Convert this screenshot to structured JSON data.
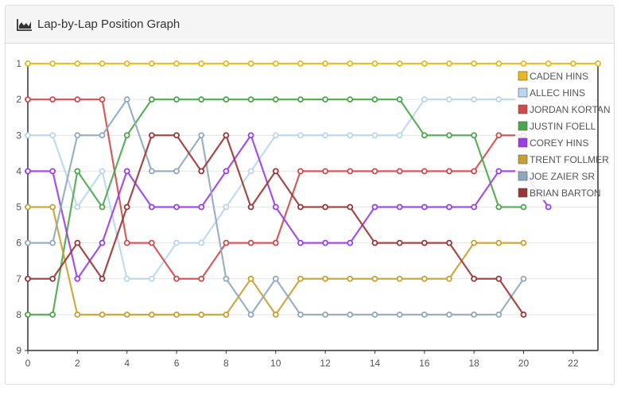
{
  "panel": {
    "title": "Lap-by-Lap Position Graph",
    "icon": "area-chart-icon"
  },
  "chart_data": {
    "type": "line",
    "title": "Lap-by-Lap Position Graph",
    "xlabel": "",
    "ylabel": "",
    "xlim": [
      0,
      23
    ],
    "ylim": [
      1,
      9
    ],
    "y_inverted": true,
    "x_ticks": [
      0,
      2,
      4,
      6,
      8,
      10,
      12,
      14,
      16,
      18,
      20,
      22
    ],
    "y_ticks": [
      1,
      2,
      3,
      4,
      5,
      6,
      7,
      8,
      9
    ],
    "grid": true,
    "legend_position": "top-right",
    "series": [
      {
        "name": "CADEN HINS",
        "color": "#e8b820",
        "values": [
          1,
          1,
          1,
          1,
          1,
          1,
          1,
          1,
          1,
          1,
          1,
          1,
          1,
          1,
          1,
          1,
          1,
          1,
          1,
          1,
          1,
          1,
          1,
          1
        ]
      },
      {
        "name": "ALLEC HINS",
        "color": "#b9d6ee",
        "values": [
          3,
          3,
          5,
          4,
          7,
          7,
          6,
          6,
          5,
          4,
          3,
          3,
          3,
          3,
          3,
          3,
          2,
          2,
          2,
          2,
          2,
          null,
          null,
          null
        ]
      },
      {
        "name": "JORDAN KORTAN",
        "color": "#d04a4a",
        "values": [
          2,
          2,
          2,
          2,
          6,
          6,
          7,
          7,
          6,
          6,
          6,
          4,
          4,
          4,
          4,
          4,
          4,
          4,
          4,
          3,
          3,
          null,
          null,
          null
        ]
      },
      {
        "name": "JUSTIN FOELL",
        "color": "#4aa84a",
        "values": [
          8,
          8,
          4,
          5,
          3,
          2,
          2,
          2,
          2,
          2,
          2,
          2,
          2,
          2,
          2,
          2,
          3,
          3,
          3,
          5,
          5,
          null,
          null,
          null
        ]
      },
      {
        "name": "COREY HINS",
        "color": "#9a3ee8",
        "values": [
          4,
          4,
          7,
          6,
          4,
          5,
          5,
          5,
          4,
          3,
          5,
          6,
          6,
          6,
          5,
          5,
          5,
          5,
          5,
          4,
          4,
          5,
          null,
          null
        ]
      },
      {
        "name": "TRENT FOLLMER",
        "color": "#c9a030",
        "values": [
          5,
          5,
          8,
          8,
          8,
          8,
          8,
          8,
          8,
          7,
          8,
          7,
          7,
          7,
          7,
          7,
          7,
          7,
          6,
          6,
          6,
          null,
          null,
          null
        ]
      },
      {
        "name": "JOE ZAIER SR",
        "color": "#8fa8be",
        "values": [
          6,
          6,
          3,
          3,
          2,
          4,
          4,
          3,
          7,
          8,
          7,
          8,
          8,
          8,
          8,
          8,
          8,
          8,
          8,
          8,
          7,
          null,
          null,
          null
        ]
      },
      {
        "name": "BRIAN BARTON",
        "color": "#9c3535",
        "values": [
          7,
          7,
          6,
          7,
          5,
          3,
          3,
          4,
          3,
          5,
          4,
          5,
          5,
          5,
          6,
          6,
          6,
          6,
          7,
          7,
          8,
          null,
          null,
          null
        ]
      }
    ]
  }
}
